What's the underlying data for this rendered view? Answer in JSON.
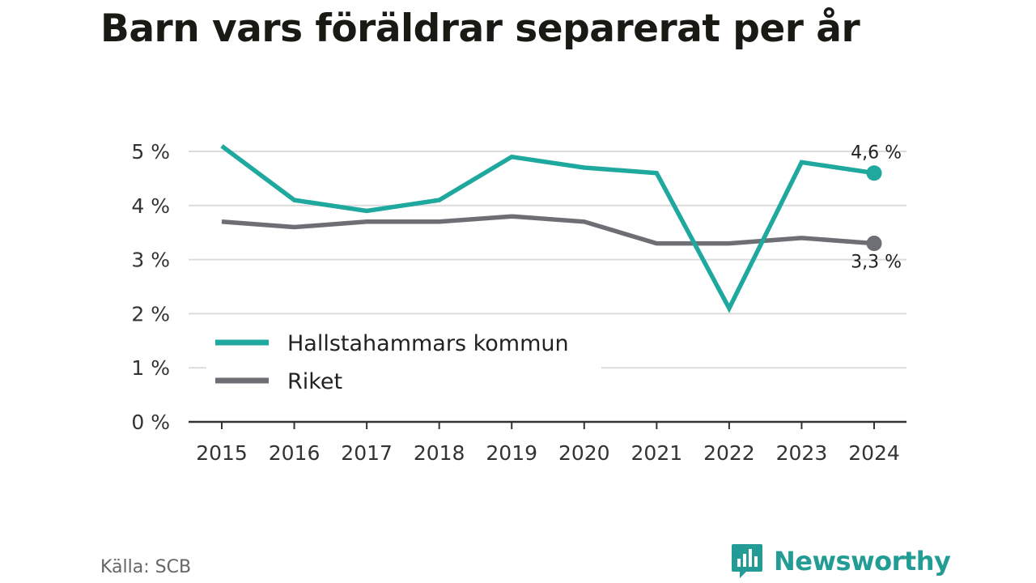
{
  "title": "Barn vars föräldrar separerat per år",
  "source": "Källa: SCB",
  "brand": {
    "name": "Newsworthy",
    "icon": "newsworthy-logo-icon",
    "color": "#239c95"
  },
  "chart_data": {
    "type": "line",
    "title": "Barn vars föräldrar separerat per år",
    "x": [
      "2015",
      "2016",
      "2017",
      "2018",
      "2019",
      "2020",
      "2021",
      "2022",
      "2023",
      "2024"
    ],
    "ylim": [
      0,
      5
    ],
    "yticks": [
      {
        "value": 0,
        "label": "0 %"
      },
      {
        "value": 1,
        "label": "1 %"
      },
      {
        "value": 2,
        "label": "2 %"
      },
      {
        "value": 3,
        "label": "3 %"
      },
      {
        "value": 4,
        "label": "4 %"
      },
      {
        "value": 5,
        "label": "5 %"
      }
    ],
    "grid": true,
    "legend_position": "bottom-left",
    "series": [
      {
        "name": "Hallstahammars kommun",
        "color": "#1fa89e",
        "values": [
          5.1,
          4.1,
          3.9,
          4.1,
          4.9,
          4.7,
          4.6,
          2.1,
          4.8,
          4.6
        ],
        "end_label": "4,6 %"
      },
      {
        "name": "Riket",
        "color": "#6e6e75",
        "values": [
          3.7,
          3.6,
          3.7,
          3.7,
          3.8,
          3.7,
          3.3,
          3.3,
          3.4,
          3.3
        ],
        "end_label": "3,3 %"
      }
    ]
  }
}
